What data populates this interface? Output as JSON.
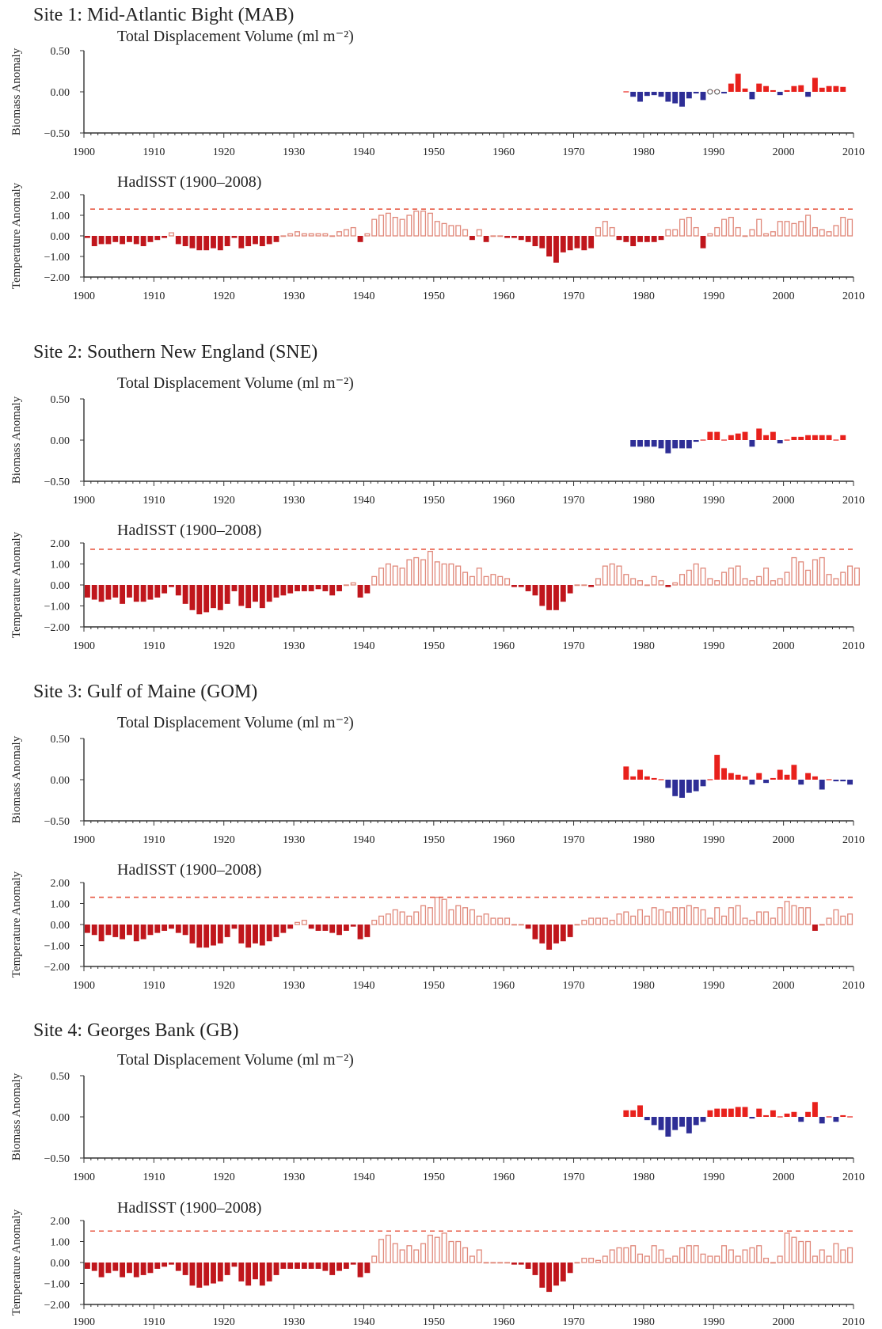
{
  "colors": {
    "biomass_positive": "#e8211c",
    "biomass_negative": "#2e2e96",
    "sst_negative_fill": "#c0161c",
    "sst_positive_outline": "#e0887a",
    "threshold_line": "#e85a45",
    "axis": "#333333"
  },
  "chart_data": [
    {
      "type": "bar",
      "site_title": "Site 1:  Mid-Atlantic Bight (MAB)",
      "title": "Total Displacement Volume (ml m⁻²)",
      "ylabel": "Biomass Anomaly",
      "ylim": [
        -0.5,
        0.5
      ],
      "yticks": [
        "0.50",
        "0.00",
        "−0.50"
      ],
      "xlim": [
        1900,
        2010
      ],
      "xticks": [
        "1900",
        "1910",
        "1920",
        "1930",
        "1940",
        "1950",
        "1960",
        "1970",
        "1980",
        "1990",
        "2000",
        "2010"
      ],
      "x": [
        1977,
        1978,
        1979,
        1980,
        1981,
        1982,
        1983,
        1984,
        1985,
        1986,
        1987,
        1988,
        1989,
        1990,
        1991,
        1992,
        1993,
        1994,
        1995,
        1996,
        1997,
        1998,
        1999,
        2000,
        2001,
        2002,
        2003,
        2004,
        2005,
        2006,
        2007,
        2008
      ],
      "values": [
        0.0,
        -0.06,
        -0.12,
        -0.05,
        -0.04,
        -0.06,
        -0.12,
        -0.14,
        -0.18,
        -0.08,
        -0.02,
        -0.1,
        0.02,
        0.02,
        -0.02,
        0.1,
        0.22,
        0.04,
        -0.09,
        0.1,
        0.07,
        0.02,
        -0.04,
        0.02,
        0.07,
        0.08,
        -0.06,
        0.17,
        0.05,
        0.07,
        0.07,
        0.06
      ],
      "markers": [
        {
          "x": 1989,
          "style": "open-circle"
        },
        {
          "x": 1990,
          "style": "open-circle"
        }
      ]
    },
    {
      "type": "bar",
      "title": "HadISST (1900–2008)",
      "ylabel": "Temperature Anomaly",
      "ylim": [
        -2.0,
        2.0
      ],
      "yticks": [
        "2.00",
        "1.00",
        "0.00",
        "−1.00",
        "−2.00"
      ],
      "xlim": [
        1900,
        2010
      ],
      "xticks": [
        "1900",
        "1910",
        "1920",
        "1930",
        "1940",
        "1950",
        "1960",
        "1970",
        "1980",
        "1990",
        "2000",
        "2010"
      ],
      "threshold": 1.3,
      "x_start": 1900,
      "values": [
        -0.1,
        -0.5,
        -0.4,
        -0.4,
        -0.3,
        -0.4,
        -0.3,
        -0.4,
        -0.5,
        -0.3,
        -0.2,
        -0.1,
        0.15,
        -0.4,
        -0.5,
        -0.6,
        -0.7,
        -0.7,
        -0.6,
        -0.7,
        -0.5,
        -0.1,
        -0.6,
        -0.5,
        -0.4,
        -0.5,
        -0.4,
        -0.3,
        0.0,
        0.1,
        0.2,
        0.1,
        0.1,
        0.1,
        0.1,
        0.0,
        0.2,
        0.3,
        0.4,
        -0.3,
        0.1,
        0.8,
        1.0,
        1.1,
        0.9,
        0.8,
        1.0,
        1.2,
        1.2,
        1.1,
        0.7,
        0.6,
        0.5,
        0.5,
        0.3,
        -0.2,
        0.3,
        -0.3,
        0.0,
        0.0,
        -0.1,
        -0.1,
        -0.2,
        -0.3,
        -0.5,
        -0.6,
        -1.0,
        -1.3,
        -0.8,
        -0.7,
        -0.6,
        -0.7,
        -0.6,
        0.4,
        0.7,
        0.4,
        -0.2,
        -0.3,
        -0.5,
        -0.3,
        -0.3,
        -0.3,
        -0.2,
        0.3,
        0.3,
        0.8,
        0.9,
        0.4,
        -0.6,
        0.1,
        0.4,
        0.8,
        0.9,
        0.4,
        0.0,
        0.3,
        0.8,
        0.1,
        0.2,
        0.7,
        0.7,
        0.6,
        0.7,
        1.0,
        0.4,
        0.3,
        0.2,
        0.5,
        0.9,
        0.8
      ]
    },
    {
      "type": "bar",
      "site_title": "Site 2:  Southern New England (SNE)",
      "title": "Total Displacement Volume (ml m⁻²)",
      "ylabel": "Biomass Anomaly",
      "ylim": [
        -0.5,
        0.5
      ],
      "yticks": [
        "0.50",
        "0.00",
        "−0.50"
      ],
      "xlim": [
        1900,
        2010
      ],
      "xticks": [
        "1900",
        "1910",
        "1920",
        "1930",
        "1940",
        "1950",
        "1960",
        "1970",
        "1980",
        "1990",
        "2000",
        "2010"
      ],
      "x": [
        1978,
        1979,
        1980,
        1981,
        1982,
        1983,
        1984,
        1985,
        1986,
        1987,
        1988,
        1989,
        1990,
        1991,
        1992,
        1993,
        1994,
        1995,
        1996,
        1997,
        1998,
        1999,
        2000,
        2001,
        2002,
        2003,
        2004,
        2005,
        2006,
        2007,
        2008
      ],
      "values": [
        -0.08,
        -0.08,
        -0.08,
        -0.08,
        -0.1,
        -0.16,
        -0.1,
        -0.1,
        -0.1,
        -0.02,
        0.0,
        0.1,
        0.1,
        0.0,
        0.06,
        0.08,
        0.1,
        -0.08,
        0.14,
        0.06,
        0.1,
        -0.04,
        0.0,
        0.04,
        0.04,
        0.06,
        0.06,
        0.06,
        0.06,
        0.0,
        0.06
      ]
    },
    {
      "type": "bar",
      "title": "HadISST (1900–2008)",
      "ylabel": "Temperature Anomaly",
      "ylim": [
        -2.0,
        2.0
      ],
      "yticks": [
        "2.00",
        "1.00",
        "0.00",
        "−1.00",
        "−2.00"
      ],
      "xlim": [
        1900,
        2010
      ],
      "xticks": [
        "1900",
        "1910",
        "1920",
        "1930",
        "1940",
        "1950",
        "1960",
        "1970",
        "1980",
        "1990",
        "2000",
        "2010"
      ],
      "threshold": 1.7,
      "x_start": 1900,
      "values": [
        -0.6,
        -0.7,
        -0.8,
        -0.7,
        -0.6,
        -0.9,
        -0.6,
        -0.8,
        -0.8,
        -0.7,
        -0.6,
        -0.4,
        -0.1,
        -0.5,
        -0.9,
        -1.2,
        -1.4,
        -1.3,
        -1.1,
        -1.2,
        -0.9,
        -0.3,
        -1.0,
        -1.1,
        -0.8,
        -1.1,
        -0.8,
        -0.6,
        -0.5,
        -0.4,
        -0.3,
        -0.3,
        -0.3,
        -0.2,
        -0.3,
        -0.5,
        -0.3,
        0.0,
        0.1,
        -0.6,
        -0.4,
        0.4,
        0.8,
        1.0,
        0.9,
        0.8,
        1.2,
        1.3,
        1.2,
        1.6,
        1.1,
        1.0,
        1.0,
        0.9,
        0.6,
        0.4,
        0.8,
        0.4,
        0.5,
        0.4,
        0.3,
        -0.1,
        -0.1,
        -0.3,
        -0.5,
        -1.0,
        -1.2,
        -1.2,
        -0.8,
        -0.4,
        0.0,
        0.0,
        -0.1,
        0.3,
        0.9,
        1.0,
        0.9,
        0.5,
        0.3,
        0.2,
        0.0,
        0.4,
        0.2,
        -0.1,
        0.1,
        0.5,
        0.7,
        1.0,
        0.8,
        0.3,
        0.2,
        0.6,
        0.8,
        0.9,
        0.3,
        0.2,
        0.4,
        0.8,
        0.2,
        0.3,
        0.6,
        1.3,
        1.1,
        0.7,
        1.2,
        1.3,
        0.5,
        0.3,
        0.6,
        0.9,
        0.8
      ]
    },
    {
      "type": "bar",
      "site_title": "Site 3:  Gulf of Maine (GOM)",
      "title": "Total Displacement Volume (ml m⁻²)",
      "ylabel": "Biomass Anomaly",
      "ylim": [
        -0.5,
        0.5
      ],
      "yticks": [
        "0.50",
        "0.00",
        "−0.50"
      ],
      "xlim": [
        1900,
        2010
      ],
      "xticks": [
        "1900",
        "1910",
        "1920",
        "1930",
        "1940",
        "1950",
        "1960",
        "1970",
        "1980",
        "1990",
        "2000",
        "2010"
      ],
      "x": [
        1977,
        1978,
        1979,
        1980,
        1981,
        1982,
        1983,
        1984,
        1985,
        1986,
        1987,
        1988,
        1989,
        1990,
        1991,
        1992,
        1993,
        1994,
        1995,
        1996,
        1997,
        1998,
        1999,
        2000,
        2001,
        2002,
        2003,
        2004,
        2005,
        2006,
        2007,
        2008,
        2009
      ],
      "values": [
        0.16,
        0.04,
        0.12,
        0.04,
        0.02,
        0.0,
        -0.1,
        -0.2,
        -0.22,
        -0.16,
        -0.14,
        -0.08,
        0.0,
        0.3,
        0.14,
        0.08,
        0.06,
        0.04,
        -0.06,
        0.08,
        -0.04,
        0.02,
        0.12,
        0.06,
        0.18,
        -0.06,
        0.08,
        0.04,
        -0.12,
        0.0,
        -0.02,
        -0.02,
        -0.06
      ]
    },
    {
      "type": "bar",
      "title": "HadISST (1900–2008)",
      "ylabel": "Temperature Anomaly",
      "ylim": [
        -2.0,
        2.0
      ],
      "yticks": [
        "2.00",
        "1.00",
        "0.00",
        "−1.00",
        "−2.00"
      ],
      "xlim": [
        1900,
        2010
      ],
      "xticks": [
        "1900",
        "1910",
        "1920",
        "1930",
        "1940",
        "1950",
        "1960",
        "1970",
        "1980",
        "1990",
        "2000",
        "2010"
      ],
      "threshold": 1.3,
      "x_start": 1900,
      "values": [
        -0.4,
        -0.5,
        -0.8,
        -0.5,
        -0.6,
        -0.7,
        -0.5,
        -0.8,
        -0.7,
        -0.5,
        -0.4,
        -0.3,
        -0.2,
        -0.4,
        -0.5,
        -0.9,
        -1.1,
        -1.1,
        -1.0,
        -0.9,
        -0.6,
        -0.2,
        -0.9,
        -1.1,
        -0.9,
        -1.0,
        -0.8,
        -0.6,
        -0.4,
        -0.2,
        0.1,
        0.2,
        -0.2,
        -0.3,
        -0.3,
        -0.4,
        -0.5,
        -0.3,
        -0.1,
        -0.7,
        -0.6,
        0.2,
        0.4,
        0.5,
        0.7,
        0.6,
        0.4,
        0.6,
        0.9,
        0.8,
        1.3,
        1.2,
        0.7,
        0.9,
        0.8,
        0.7,
        0.4,
        0.5,
        0.3,
        0.3,
        0.3,
        0.0,
        0.0,
        -0.2,
        -0.7,
        -0.9,
        -1.2,
        -0.9,
        -0.8,
        -0.6,
        0.0,
        0.2,
        0.3,
        0.3,
        0.3,
        0.2,
        0.5,
        0.6,
        0.4,
        0.7,
        0.4,
        0.8,
        0.7,
        0.6,
        0.8,
        0.8,
        0.9,
        0.8,
        0.7,
        0.3,
        0.8,
        0.4,
        0.8,
        0.9,
        0.3,
        0.2,
        0.6,
        0.6,
        0.3,
        0.8,
        1.1,
        0.9,
        0.8,
        0.8,
        -0.3,
        0.0,
        0.3,
        0.7,
        0.4,
        0.5
      ]
    },
    {
      "type": "bar",
      "site_title": "Site 4:  Georges Bank (GB)",
      "title": "Total Displacement Volume (ml m⁻²)",
      "ylabel": "Biomass Anomaly",
      "ylim": [
        -0.5,
        0.5
      ],
      "yticks": [
        "0.50",
        "0.00",
        "−0.50"
      ],
      "xlim": [
        1900,
        2010
      ],
      "xticks": [
        "1900",
        "1910",
        "1920",
        "1930",
        "1940",
        "1950",
        "1960",
        "1970",
        "1980",
        "1990",
        "2000",
        "2010"
      ],
      "x": [
        1977,
        1978,
        1979,
        1980,
        1981,
        1982,
        1983,
        1984,
        1985,
        1986,
        1987,
        1988,
        1989,
        1990,
        1991,
        1992,
        1993,
        1994,
        1995,
        1996,
        1997,
        1998,
        1999,
        2000,
        2001,
        2002,
        2003,
        2004,
        2005,
        2006,
        2007,
        2008,
        2009
      ],
      "values": [
        0.08,
        0.08,
        0.14,
        -0.04,
        -0.1,
        -0.16,
        -0.24,
        -0.16,
        -0.12,
        -0.2,
        -0.1,
        -0.06,
        0.08,
        0.1,
        0.1,
        0.1,
        0.12,
        0.12,
        -0.02,
        0.1,
        0.02,
        0.08,
        0.0,
        0.04,
        0.06,
        -0.06,
        0.06,
        0.18,
        -0.08,
        0.0,
        -0.06,
        0.02,
        0.0
      ]
    },
    {
      "type": "bar",
      "title": "HadISST (1900–2008)",
      "ylabel": "Temperature Anomaly",
      "ylim": [
        -2.0,
        2.0
      ],
      "yticks": [
        "2.00",
        "1.00",
        "0.00",
        "−1.00",
        "−2.00"
      ],
      "xlim": [
        1900,
        2010
      ],
      "xticks": [
        "1900",
        "1910",
        "1920",
        "1930",
        "1940",
        "1950",
        "1960",
        "1970",
        "1980",
        "1990",
        "2000",
        "2010"
      ],
      "threshold": 1.5,
      "x_start": 1900,
      "values": [
        -0.3,
        -0.4,
        -0.7,
        -0.5,
        -0.4,
        -0.7,
        -0.5,
        -0.7,
        -0.6,
        -0.5,
        -0.3,
        -0.2,
        -0.1,
        -0.4,
        -0.6,
        -1.1,
        -1.2,
        -1.1,
        -1.0,
        -0.9,
        -0.6,
        -0.2,
        -0.9,
        -1.1,
        -0.8,
        -1.1,
        -0.9,
        -0.6,
        -0.3,
        -0.3,
        -0.3,
        -0.3,
        -0.3,
        -0.3,
        -0.4,
        -0.6,
        -0.4,
        -0.3,
        -0.1,
        -0.7,
        -0.5,
        0.3,
        1.1,
        1.3,
        0.9,
        0.6,
        0.8,
        0.6,
        0.9,
        1.3,
        1.2,
        1.4,
        1.0,
        1.0,
        0.7,
        0.3,
        0.6,
        0.0,
        0.0,
        0.0,
        0.0,
        -0.1,
        -0.1,
        -0.3,
        -0.6,
        -1.2,
        -1.4,
        -1.1,
        -0.9,
        -0.5,
        0.0,
        0.2,
        0.2,
        0.1,
        0.3,
        0.6,
        0.7,
        0.7,
        0.8,
        0.4,
        0.3,
        0.8,
        0.6,
        0.2,
        0.3,
        0.7,
        0.8,
        0.8,
        0.4,
        0.3,
        0.3,
        0.8,
        0.6,
        0.3,
        0.6,
        0.7,
        0.8,
        0.2,
        0.0,
        0.3,
        1.4,
        1.2,
        1.0,
        1.0,
        0.3,
        0.6,
        0.3,
        0.9,
        0.6,
        0.7
      ]
    }
  ]
}
